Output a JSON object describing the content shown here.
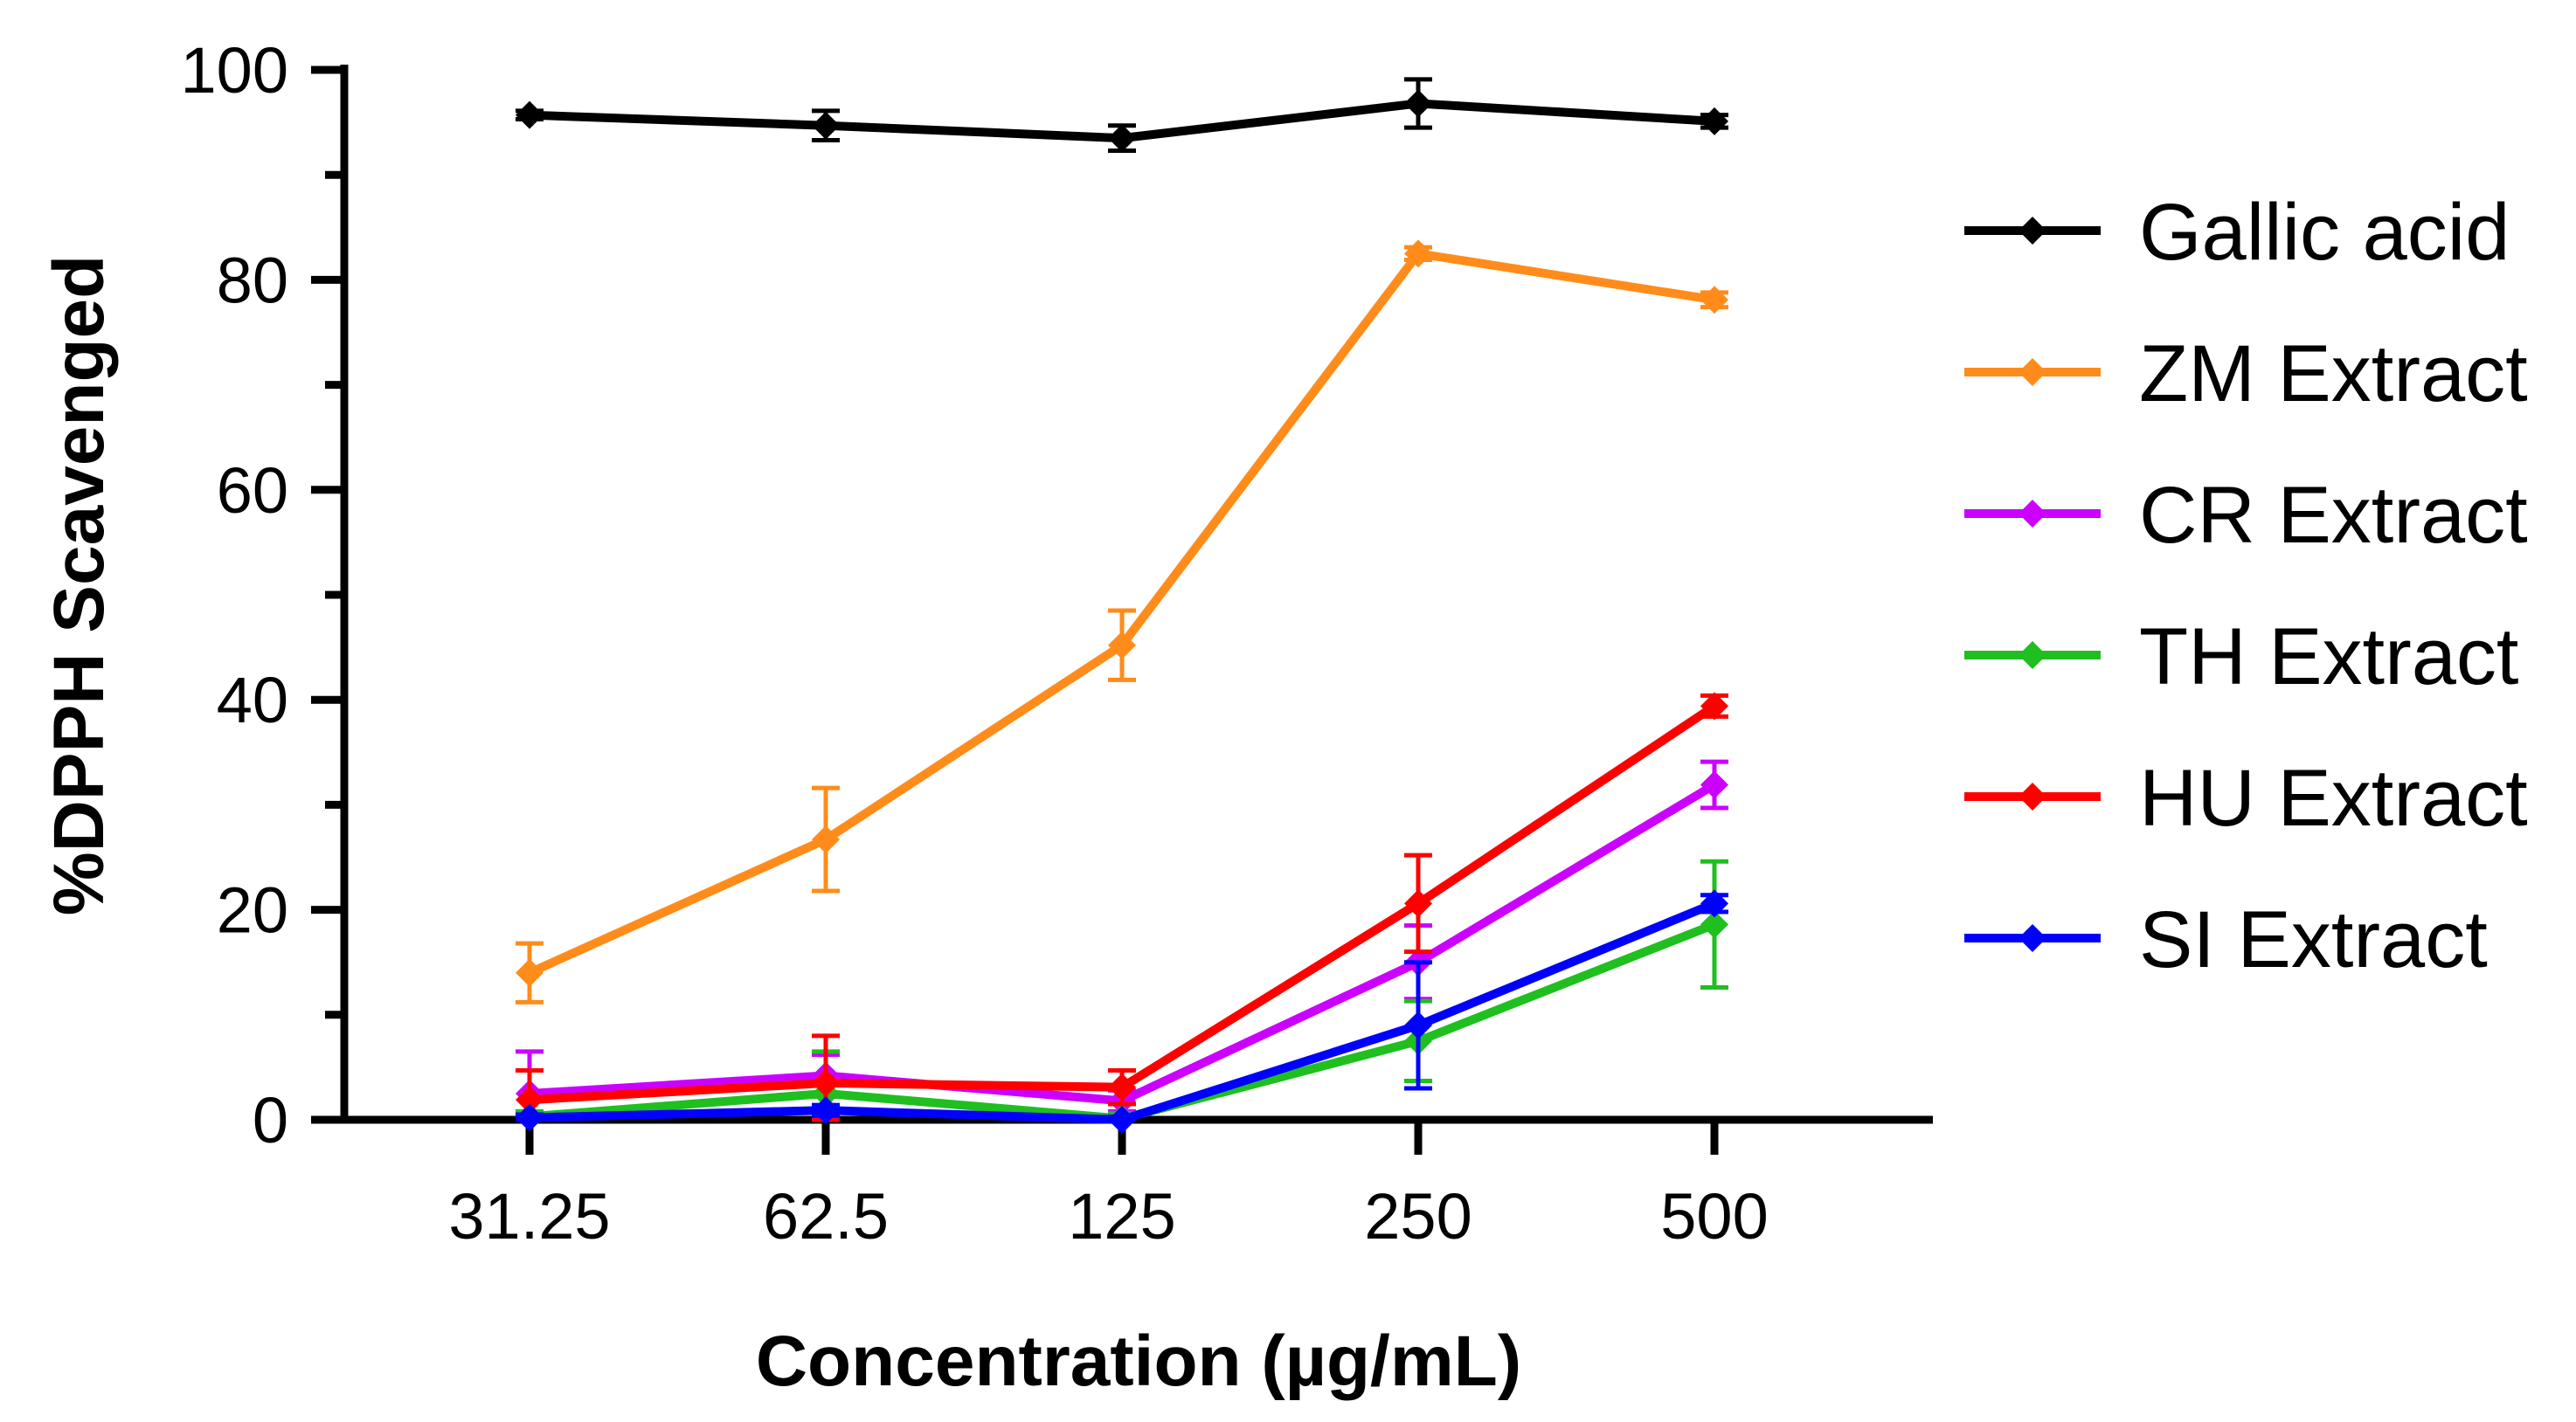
{
  "chart_data": {
    "type": "line",
    "title": "",
    "xlabel": "Concentration (µg/mL)",
    "ylabel": "%DPPH Scavenged",
    "categories": [
      "31.25",
      "62.5",
      "125",
      "250",
      "500"
    ],
    "ylim": [
      0,
      100
    ],
    "yticks": [
      "0",
      "20",
      "40",
      "60",
      "80",
      "100"
    ],
    "ytick_values": [
      0,
      20,
      40,
      60,
      80,
      100
    ],
    "legend_position": "right",
    "grid": false,
    "series": [
      {
        "name": "Gallic acid",
        "color": "#000000",
        "values": [
          95.7,
          94.7,
          93.5,
          96.8,
          95.1
        ],
        "errors": [
          0.4,
          1.4,
          1.2,
          2.3,
          0.6
        ]
      },
      {
        "name": "ZM Extract",
        "color": "#ff8c1a",
        "values": [
          14.0,
          26.7,
          45.2,
          82.5,
          78.1
        ],
        "errors": [
          2.8,
          4.9,
          3.3,
          0.6,
          0.7
        ]
      },
      {
        "name": "CR Extract",
        "color": "#cc00ff",
        "values": [
          2.5,
          4.2,
          1.8,
          15.0,
          31.9
        ],
        "errors": [
          4.0,
          2.0,
          1.0,
          3.5,
          2.2
        ]
      },
      {
        "name": "TH Extract",
        "color": "#1fbf1f",
        "values": [
          0.3,
          2.5,
          0.1,
          7.5,
          18.6
        ],
        "errors": [
          0.5,
          4.0,
          0.5,
          3.8,
          6.0
        ]
      },
      {
        "name": "HU Extract",
        "color": "#ff0000",
        "values": [
          1.9,
          3.5,
          3.1,
          20.6,
          39.4
        ],
        "errors": [
          2.8,
          4.5,
          1.6,
          4.6,
          1.0
        ]
      },
      {
        "name": "SI Extract",
        "color": "#0000ff",
        "values": [
          0.2,
          0.9,
          0.0,
          9.0,
          20.6
        ],
        "errors": [
          0.3,
          0.5,
          0.3,
          6.0,
          0.8
        ]
      }
    ]
  }
}
